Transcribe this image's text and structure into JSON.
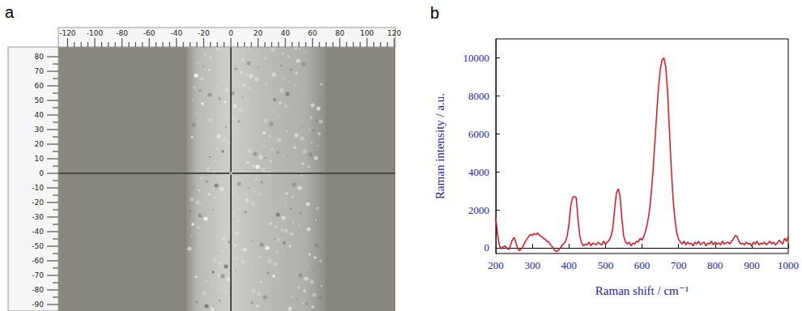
{
  "panel_a": {
    "letter": "a",
    "x_ruler": {
      "ticks": [
        -120,
        -100,
        -80,
        -60,
        -40,
        -20,
        0,
        20,
        40,
        60,
        80,
        100,
        120
      ]
    },
    "y_ruler": {
      "ticks": [
        80,
        70,
        60,
        50,
        40,
        30,
        20,
        10,
        0,
        -10,
        -20,
        -30,
        -40,
        -50,
        -60,
        -70,
        -80,
        -90
      ]
    }
  },
  "panel_b": {
    "letter": "b"
  },
  "chart_data": {
    "type": "line",
    "x_label": "Raman shift / cm⁻¹",
    "y_label": "Raman intensity / a.u.",
    "color": "#e8101a",
    "grid": false,
    "xlim": [
      200,
      1000
    ],
    "xticks": [
      200,
      300,
      400,
      500,
      600,
      700,
      800,
      900,
      1000
    ],
    "ylim": [
      -300,
      11000
    ],
    "yticks": [
      0,
      2000,
      4000,
      6000,
      8000,
      10000
    ],
    "x": [
      200,
      205,
      210,
      215,
      220,
      225,
      230,
      235,
      240,
      245,
      250,
      255,
      260,
      265,
      270,
      275,
      280,
      285,
      290,
      295,
      300,
      305,
      310,
      315,
      320,
      325,
      330,
      335,
      340,
      345,
      350,
      355,
      360,
      365,
      370,
      375,
      380,
      385,
      390,
      395,
      400,
      405,
      410,
      415,
      420,
      425,
      430,
      435,
      440,
      445,
      450,
      455,
      460,
      465,
      470,
      475,
      480,
      485,
      490,
      495,
      500,
      505,
      510,
      515,
      520,
      525,
      530,
      535,
      540,
      545,
      550,
      555,
      560,
      565,
      570,
      575,
      580,
      585,
      590,
      595,
      600,
      605,
      610,
      615,
      620,
      625,
      630,
      635,
      640,
      645,
      650,
      655,
      660,
      665,
      670,
      675,
      680,
      685,
      690,
      695,
      700,
      705,
      710,
      715,
      720,
      725,
      730,
      735,
      740,
      745,
      750,
      755,
      760,
      765,
      770,
      775,
      780,
      785,
      790,
      795,
      800,
      805,
      810,
      815,
      820,
      825,
      830,
      835,
      840,
      845,
      850,
      855,
      860,
      865,
      870,
      875,
      880,
      885,
      890,
      895,
      900,
      905,
      910,
      915,
      920,
      925,
      930,
      935,
      940,
      945,
      950,
      955,
      960,
      965,
      970,
      975,
      980,
      985,
      990,
      995,
      1000
    ],
    "values": [
      1600,
      700,
      100,
      -50,
      50,
      100,
      0,
      -100,
      100,
      400,
      550,
      300,
      -50,
      -150,
      -50,
      100,
      300,
      450,
      600,
      700,
      650,
      750,
      700,
      780,
      650,
      600,
      500,
      450,
      350,
      300,
      150,
      50,
      -100,
      -200,
      -150,
      -50,
      100,
      200,
      300,
      600,
      1200,
      2200,
      2650,
      2700,
      2650,
      1500,
      600,
      250,
      100,
      200,
      150,
      300,
      100,
      250,
      200,
      150,
      300,
      200,
      150,
      350,
      200,
      300,
      400,
      600,
      1000,
      2000,
      2900,
      3100,
      2700,
      1500,
      600,
      300,
      200,
      300,
      100,
      250,
      200,
      350,
      300,
      500,
      400,
      600,
      900,
      1300,
      1900,
      2800,
      4000,
      5500,
      7000,
      8400,
      9400,
      9900,
      10000,
      9500,
      8200,
      6200,
      4200,
      2600,
      1500,
      800,
      450,
      300,
      200,
      350,
      150,
      300,
      200,
      250,
      100,
      300,
      200,
      350,
      150,
      250,
      300,
      100,
      250,
      200,
      350,
      150,
      300,
      200,
      250,
      150,
      350,
      200,
      250,
      300,
      200,
      350,
      450,
      650,
      600,
      350,
      200,
      250,
      150,
      300,
      200,
      250,
      100,
      300,
      200,
      350,
      150,
      250,
      200,
      300,
      150,
      250,
      350,
      200,
      300,
      150,
      250,
      400,
      300,
      200,
      500,
      350,
      600
    ]
  }
}
